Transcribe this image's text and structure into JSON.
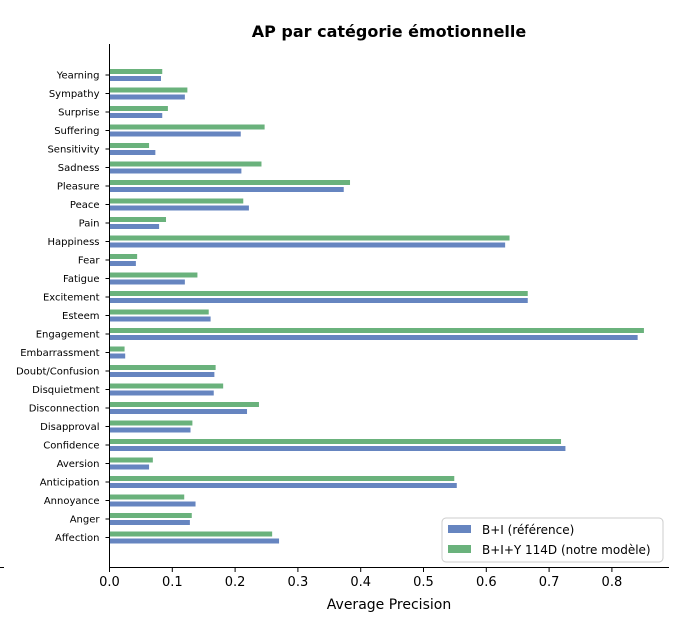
{
  "chart_data": {
    "type": "bar",
    "orientation": "horizontal",
    "title": "AP par catégorie émotionnelle",
    "xlabel": "Average Precision",
    "ylabel": "",
    "xlim": [
      0,
      0.89
    ],
    "xticks": [
      0.0,
      0.1,
      0.2,
      0.3,
      0.4,
      0.5,
      0.6,
      0.7,
      0.8
    ],
    "grid": false,
    "legend_position": "bottom-right",
    "categories": [
      "Yearning",
      "Sympathy",
      "Surprise",
      "Suffering",
      "Sensitivity",
      "Sadness",
      "Pleasure",
      "Peace",
      "Pain",
      "Happiness",
      "Fear",
      "Fatigue",
      "Excitement",
      "Esteem",
      "Engagement",
      "Embarrassment",
      "Doubt/Confusion",
      "Disquietment",
      "Disconnection",
      "Disapproval",
      "Confidence",
      "Aversion",
      "Anticipation",
      "Annoyance",
      "Anger",
      "Affection"
    ],
    "series": [
      {
        "name": "B+I (référence)",
        "color": "#6685c0",
        "values": [
          0.082,
          0.12,
          0.084,
          0.209,
          0.073,
          0.21,
          0.373,
          0.222,
          0.079,
          0.63,
          0.042,
          0.12,
          0.666,
          0.161,
          0.841,
          0.025,
          0.167,
          0.166,
          0.219,
          0.129,
          0.726,
          0.063,
          0.553,
          0.137,
          0.128,
          0.27
        ]
      },
      {
        "name": "B+I+Y 114D (notre modèle)",
        "color": "#6ab27c",
        "values": [
          0.084,
          0.124,
          0.093,
          0.247,
          0.063,
          0.242,
          0.383,
          0.213,
          0.09,
          0.637,
          0.044,
          0.14,
          0.666,
          0.158,
          0.851,
          0.024,
          0.169,
          0.181,
          0.238,
          0.132,
          0.719,
          0.069,
          0.549,
          0.119,
          0.131,
          0.259
        ]
      }
    ]
  }
}
